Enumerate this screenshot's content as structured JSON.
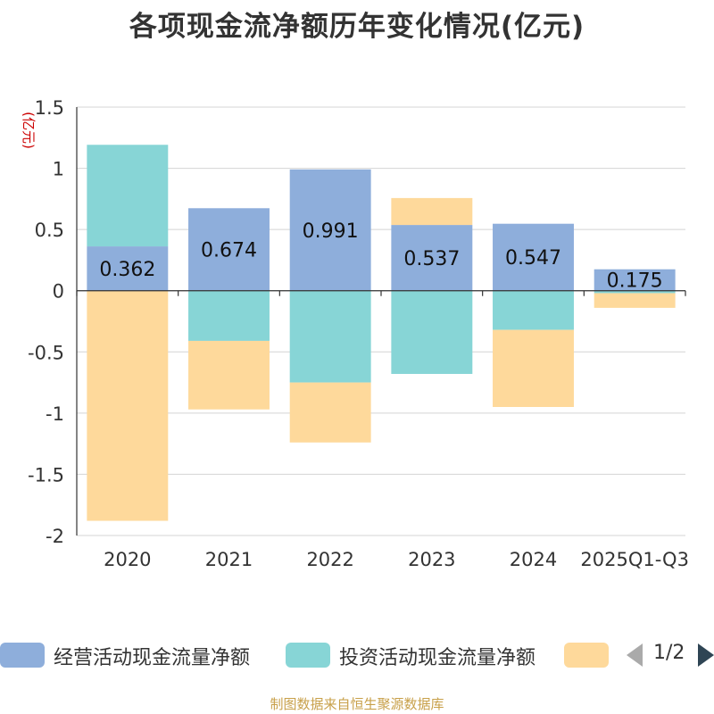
{
  "chart_data": {
    "type": "bar",
    "stacked": true,
    "title": "各项现金流净额历年变化情况(亿元)",
    "ylabel": "(亿元)",
    "xlabel": "",
    "ylim": [
      -2,
      1.5
    ],
    "yticks": [
      1.5,
      1,
      0.5,
      0,
      -0.5,
      -1,
      -1.5,
      -2
    ],
    "ytick_labels": [
      "1.5",
      "1",
      "0.5",
      "0",
      "-0.5",
      "-1",
      "-1.5",
      "-2"
    ],
    "categories": [
      "2020",
      "2021",
      "2022",
      "2023",
      "2024",
      "2025Q1-Q3"
    ],
    "series": [
      {
        "name": "经营活动现金流量净额",
        "color": "#8eaedb",
        "values": [
          0.362,
          0.674,
          0.991,
          0.537,
          0.547,
          0.175
        ],
        "show_labels": true
      },
      {
        "name": "投资活动现金流量净额",
        "color": "#87d5d6",
        "values": [
          0.83,
          -0.41,
          -0.75,
          -0.68,
          -0.32,
          -0.02
        ],
        "show_labels": false
      },
      {
        "name": "",
        "color": "#fed99b",
        "values": [
          -1.88,
          -0.56,
          -0.49,
          0.22,
          -0.63,
          -0.12
        ],
        "show_labels": false
      }
    ],
    "grid": true,
    "legend_position": "bottom"
  },
  "legend": {
    "items": [
      {
        "label": "经营活动现金流量净额",
        "color": "#8eaedb"
      },
      {
        "label": "投资活动现金流量净额",
        "color": "#87d5d6"
      },
      {
        "label": "",
        "color": "#fed99b"
      }
    ],
    "page": "1/2"
  },
  "source": "制图数据来自恒生聚源数据库"
}
